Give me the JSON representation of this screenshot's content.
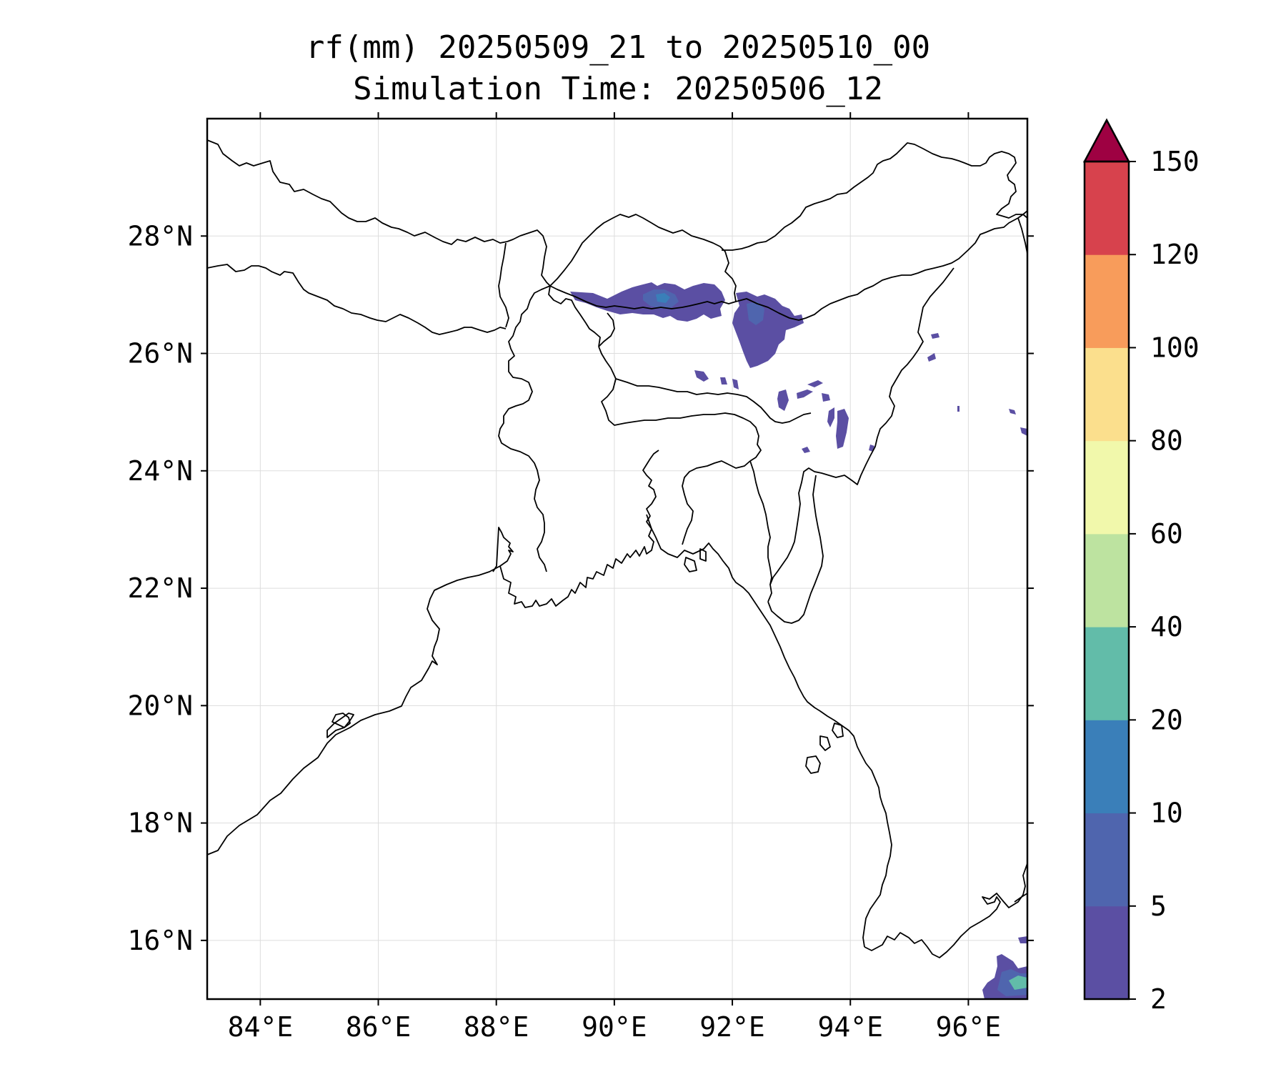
{
  "title": {
    "line1": "rf(mm) 20250509_21 to 20250510_00",
    "line2": "Simulation Time: 20250506_12"
  },
  "map": {
    "lon_range": [
      83.1,
      97.0
    ],
    "lat_range": [
      15.0,
      30.0
    ],
    "lon_ticks": [
      {
        "value": 84,
        "label": "84°E"
      },
      {
        "value": 86,
        "label": "86°E"
      },
      {
        "value": 88,
        "label": "88°E"
      },
      {
        "value": 90,
        "label": "90°E"
      },
      {
        "value": 92,
        "label": "92°E"
      },
      {
        "value": 94,
        "label": "94°E"
      },
      {
        "value": 96,
        "label": "96°E"
      }
    ],
    "lat_ticks": [
      {
        "value": 16,
        "label": "16°N"
      },
      {
        "value": 18,
        "label": "18°N"
      },
      {
        "value": 20,
        "label": "20°N"
      },
      {
        "value": 22,
        "label": "22°N"
      },
      {
        "value": 24,
        "label": "24°N"
      },
      {
        "value": 26,
        "label": "26°N"
      },
      {
        "value": 28,
        "label": "28°N"
      }
    ],
    "gridlines": true,
    "line_color": "#000000",
    "grid_color": "#dddddd"
  },
  "colorbar": {
    "levels": [
      "2",
      "5",
      "10",
      "20",
      "40",
      "60",
      "80",
      "100",
      "120",
      "150"
    ],
    "colors": [
      "#5b4fa3",
      "#4f65ae",
      "#3a7fb9",
      "#62bca9",
      "#bde3a0",
      "#f1f8ab",
      "#fbdf8d",
      "#f89c5b",
      "#d7424d"
    ],
    "extend_color": "#9e0142",
    "extend": "max"
  }
}
